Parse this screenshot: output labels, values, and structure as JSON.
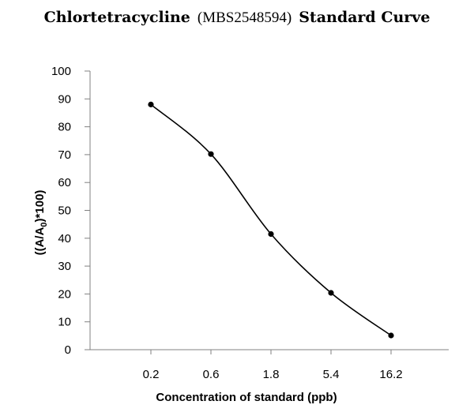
{
  "chart_data": {
    "type": "line",
    "title_parts": {
      "name": "Chlortetracycline",
      "id": "(MBS2548594)",
      "suffix": "Standard Curve"
    },
    "xlabel": "Concentration of standard (ppb)",
    "ylabel_parts": {
      "pre": "((A/A",
      "sub": "0",
      "post": ")*100)"
    },
    "categories": [
      "0.2",
      "0.6",
      "1.8",
      "5.4",
      "16.2"
    ],
    "series": [
      {
        "name": "Standard",
        "values": [
          88,
          70.2,
          41.5,
          20.4,
          5.1
        ]
      }
    ],
    "ylim": [
      0,
      100
    ],
    "yticks": [
      "0",
      "10",
      "20",
      "30",
      "40",
      "50",
      "60",
      "70",
      "80",
      "90",
      "100"
    ],
    "grid": false,
    "legend": "none"
  }
}
